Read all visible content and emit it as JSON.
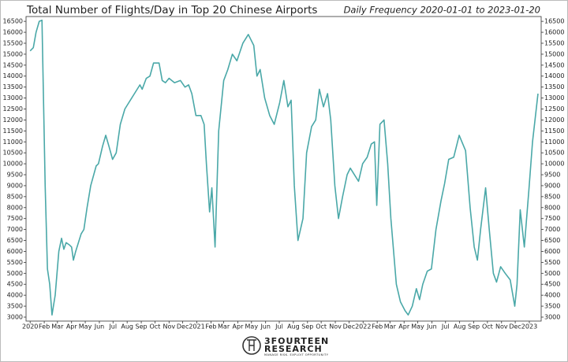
{
  "chart_data": {
    "type": "line",
    "title": "Total Number of Flights/Day in Top 20 Chinese Airports",
    "subtitle": "Daily Frequency 2020-01-01 to 2023-01-20",
    "footer": [
      "3FOURTEEN",
      "RESEARCH",
      "MANAGE RISK. EXPLOIT OPPORTUNITY"
    ],
    "color": "#4aa8a8",
    "x": [
      "2020-01-01",
      "2020-01-08",
      "2020-01-14",
      "2020-01-21",
      "2020-01-27",
      "2020-02-03",
      "2020-02-08",
      "2020-02-13",
      "2020-02-18",
      "2020-02-25",
      "2020-03-04",
      "2020-03-10",
      "2020-03-15",
      "2020-03-20",
      "2020-03-27",
      "2020-04-01",
      "2020-04-05",
      "2020-04-10",
      "2020-04-22",
      "2020-04-28",
      "2020-05-05",
      "2020-05-13",
      "2020-05-25",
      "2020-05-30",
      "2020-06-08",
      "2020-06-15",
      "2020-06-22",
      "2020-06-30",
      "2020-07-08",
      "2020-07-17",
      "2020-07-27",
      "2020-08-05",
      "2020-08-17",
      "2020-08-29",
      "2020-09-03",
      "2020-09-12",
      "2020-09-20",
      "2020-09-28",
      "2020-10-10",
      "2020-10-17",
      "2020-10-24",
      "2020-11-01",
      "2020-11-13",
      "2020-11-26",
      "2020-12-06",
      "2020-12-14",
      "2020-12-21",
      "2020-12-30",
      "2021-01-10",
      "2021-01-17",
      "2021-01-22",
      "2021-01-29",
      "2021-02-03",
      "2021-02-10",
      "2021-02-18",
      "2021-03-01",
      "2021-03-10",
      "2021-03-20",
      "2021-03-30",
      "2021-04-12",
      "2021-04-24",
      "2021-05-06",
      "2021-05-13",
      "2021-05-20",
      "2021-05-30",
      "2021-06-10",
      "2021-06-20",
      "2021-07-02",
      "2021-07-11",
      "2021-07-20",
      "2021-07-27",
      "2021-08-03",
      "2021-08-11",
      "2021-08-22",
      "2021-08-30",
      "2021-09-10",
      "2021-09-19",
      "2021-09-27",
      "2021-10-06",
      "2021-10-15",
      "2021-10-22",
      "2021-10-31",
      "2021-11-08",
      "2021-11-17",
      "2021-11-27",
      "2021-12-04",
      "2021-12-13",
      "2021-12-22",
      "2021-12-31",
      "2022-01-10",
      "2022-01-19",
      "2022-01-26",
      "2022-01-31",
      "2022-02-07",
      "2022-02-16",
      "2022-02-24",
      "2022-03-03",
      "2022-03-15",
      "2022-03-24",
      "2022-04-03",
      "2022-04-10",
      "2022-04-19",
      "2022-04-28",
      "2022-05-05",
      "2022-05-12",
      "2022-05-22",
      "2022-05-31",
      "2022-06-10",
      "2022-06-21",
      "2022-06-29",
      "2022-07-08",
      "2022-07-19",
      "2022-07-31",
      "2022-08-14",
      "2022-08-24",
      "2022-09-02",
      "2022-09-09",
      "2022-09-16",
      "2022-09-27",
      "2022-10-05",
      "2022-10-14",
      "2022-10-21",
      "2022-10-30",
      "2022-11-09",
      "2022-11-20",
      "2022-11-30",
      "2022-12-05",
      "2022-12-12",
      "2022-12-21",
      "2022-12-31",
      "2023-01-08",
      "2023-01-20"
    ],
    "values": [
      15150,
      15300,
      16000,
      16500,
      16550,
      9000,
      5200,
      4500,
      3100,
      4000,
      6000,
      6600,
      6100,
      6400,
      6300,
      6200,
      5600,
      6000,
      6800,
      7000,
      8000,
      9000,
      9900,
      10000,
      10800,
      11300,
      10800,
      10200,
      10500,
      11800,
      12500,
      12800,
      13200,
      13600,
      13400,
      13900,
      14000,
      14600,
      14600,
      13800,
      13700,
      13900,
      13700,
      13800,
      13500,
      13600,
      13200,
      12200,
      12200,
      11800,
      10000,
      7800,
      8900,
      6200,
      11500,
      13800,
      14300,
      15000,
      14700,
      15500,
      15900,
      15400,
      14000,
      14300,
      13000,
      12200,
      11800,
      12800,
      13800,
      12600,
      12900,
      9000,
      6500,
      7500,
      10500,
      11700,
      12000,
      13400,
      12600,
      13200,
      12000,
      9000,
      7500,
      8500,
      9500,
      9800,
      9500,
      9200,
      10000,
      10300,
      10900,
      11000,
      8100,
      11800,
      12000,
      10000,
      7500,
      4500,
      3700,
      3300,
      3100,
      3500,
      4300,
      3800,
      4500,
      5100,
      5200,
      7000,
      8300,
      9100,
      10200,
      10300,
      11300,
      10600,
      8000,
      6200,
      5600,
      7000,
      8900,
      7000,
      5000,
      4600,
      5300,
      5000,
      4700,
      3500,
      4500,
      7900,
      6200,
      8800,
      11000,
      13200
    ],
    "xlim": [
      "2019-12-23",
      "2023-01-27"
    ],
    "xticks": [
      {
        "value": "2020-01-01",
        "label": "2020"
      },
      {
        "value": "2020-02-01",
        "label": "Feb"
      },
      {
        "value": "2020-03-01",
        "label": "Mar"
      },
      {
        "value": "2020-04-01",
        "label": "Apr"
      },
      {
        "value": "2020-05-01",
        "label": "May"
      },
      {
        "value": "2020-06-01",
        "label": "Jun"
      },
      {
        "value": "2020-07-01",
        "label": "Jul"
      },
      {
        "value": "2020-08-01",
        "label": "Aug"
      },
      {
        "value": "2020-09-01",
        "label": "Sep"
      },
      {
        "value": "2020-10-01",
        "label": "Oct"
      },
      {
        "value": "2020-11-01",
        "label": "Nov"
      },
      {
        "value": "2020-12-01",
        "label": "Dec"
      },
      {
        "value": "2021-01-01",
        "label": "2021"
      },
      {
        "value": "2021-02-01",
        "label": "Feb"
      },
      {
        "value": "2021-03-01",
        "label": "Mar"
      },
      {
        "value": "2021-04-01",
        "label": "Apr"
      },
      {
        "value": "2021-05-01",
        "label": "May"
      },
      {
        "value": "2021-06-01",
        "label": "Jun"
      },
      {
        "value": "2021-07-01",
        "label": "Jul"
      },
      {
        "value": "2021-08-01",
        "label": "Aug"
      },
      {
        "value": "2021-09-01",
        "label": "Sep"
      },
      {
        "value": "2021-10-01",
        "label": "Oct"
      },
      {
        "value": "2021-11-01",
        "label": "Nov"
      },
      {
        "value": "2021-12-01",
        "label": "Dec"
      },
      {
        "value": "2022-01-01",
        "label": "2022"
      },
      {
        "value": "2022-02-01",
        "label": "Feb"
      },
      {
        "value": "2022-03-01",
        "label": "Mar"
      },
      {
        "value": "2022-04-01",
        "label": "Apr"
      },
      {
        "value": "2022-05-01",
        "label": "May"
      },
      {
        "value": "2022-06-01",
        "label": "Jun"
      },
      {
        "value": "2022-07-01",
        "label": "Jul"
      },
      {
        "value": "2022-08-01",
        "label": "Aug"
      },
      {
        "value": "2022-09-01",
        "label": "Sep"
      },
      {
        "value": "2022-10-01",
        "label": "Oct"
      },
      {
        "value": "2022-11-01",
        "label": "Nov"
      },
      {
        "value": "2022-12-01",
        "label": "Dec"
      },
      {
        "value": "2023-01-01",
        "label": "2023"
      }
    ],
    "ylim": [
      2820,
      16720
    ],
    "yticks": [
      3000,
      3500,
      4000,
      4500,
      5000,
      5500,
      6000,
      6500,
      7000,
      7500,
      8000,
      8500,
      9000,
      9500,
      10000,
      10500,
      11000,
      11500,
      12000,
      12500,
      13000,
      13500,
      14000,
      14500,
      15000,
      15500,
      16000,
      16500
    ],
    "y2lim": [
      2820,
      16720
    ],
    "y2ticks": [
      3000,
      3500,
      4000,
      4500,
      5000,
      5500,
      6000,
      6500,
      7000,
      7500,
      8000,
      8500,
      9000,
      9500,
      10000,
      10500,
      11000,
      11500,
      12000,
      12500,
      13000,
      13500,
      14000,
      14500,
      15000,
      15500,
      16000,
      16500
    ],
    "grid": false
  }
}
